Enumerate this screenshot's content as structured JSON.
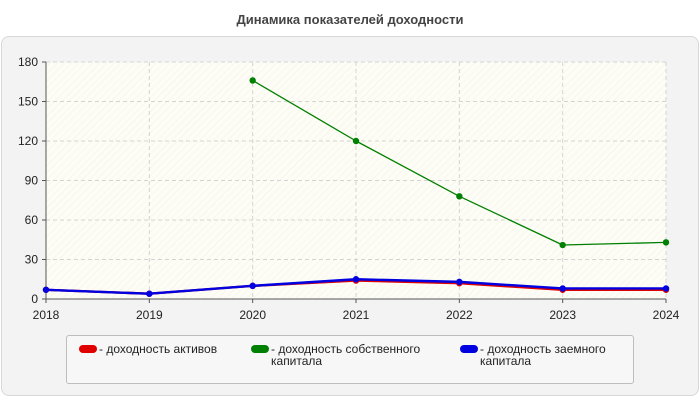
{
  "chart_data": {
    "type": "line",
    "title": "Динамика показателей доходности",
    "xlabel": "",
    "ylabel": "",
    "ylim": [
      0,
      180
    ],
    "yticks": [
      0,
      30,
      60,
      90,
      120,
      150,
      180
    ],
    "grid": true,
    "legend_position": "bottom",
    "x": [
      2018,
      2019,
      2020,
      2021,
      2022,
      2023,
      2024
    ],
    "series": [
      {
        "name": "- доходность активов",
        "color": "#e00000",
        "values": [
          7,
          4,
          10,
          14,
          12,
          7,
          7
        ]
      },
      {
        "name": "- доходность собственного капитала",
        "color": "#008000",
        "values": [
          null,
          null,
          166,
          120,
          78,
          41,
          43
        ]
      },
      {
        "name": "- доходность заемного капитала",
        "color": "#0000e0",
        "values": [
          7,
          4,
          10,
          15,
          13,
          8,
          8
        ]
      }
    ]
  }
}
